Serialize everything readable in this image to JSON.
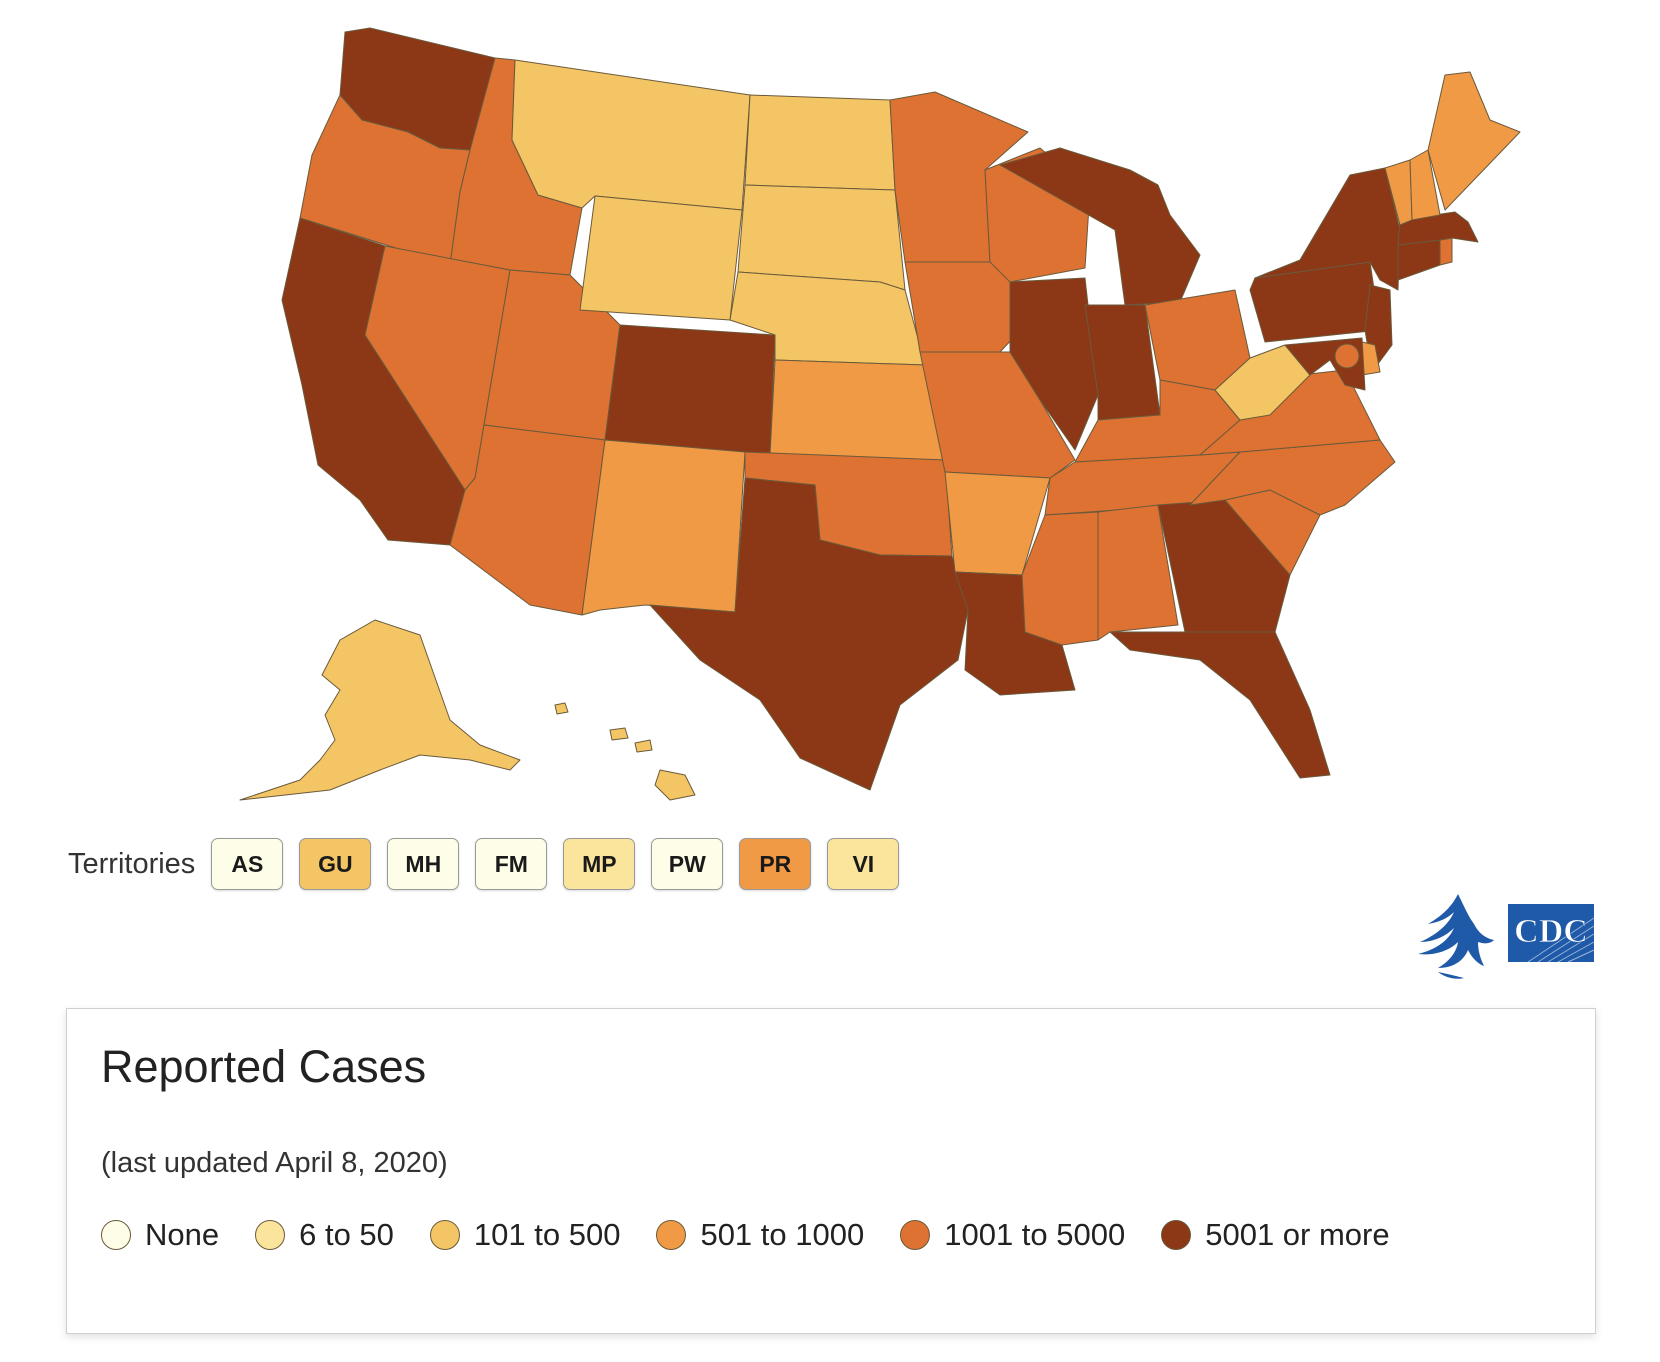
{
  "colors": {
    "none": "#fefde8",
    "c6_50": "#fbe49c",
    "c101_500": "#f4c564",
    "c501_1000": "#f09a45",
    "c1001_5000": "#dd7232",
    "c5001_plus": "#8c3716"
  },
  "states": {
    "WA": "c5001_plus",
    "OR": "c1001_5000",
    "CA": "c5001_plus",
    "ID": "c1001_5000",
    "NV": "c1001_5000",
    "UT": "c1001_5000",
    "AZ": "c1001_5000",
    "MT": "c101_500",
    "WY": "c101_500",
    "CO": "c5001_plus",
    "NM": "c501_1000",
    "ND": "c101_500",
    "SD": "c101_500",
    "NE": "c101_500",
    "KS": "c501_1000",
    "OK": "c1001_5000",
    "TX": "c5001_plus",
    "MN": "c1001_5000",
    "IA": "c1001_5000",
    "MO": "c1001_5000",
    "AR": "c501_1000",
    "LA": "c5001_plus",
    "WI": "c1001_5000",
    "IL": "c5001_plus",
    "MI": "c5001_plus",
    "IN": "c5001_plus",
    "OH": "c1001_5000",
    "KY": "c1001_5000",
    "TN": "c1001_5000",
    "MS": "c1001_5000",
    "AL": "c1001_5000",
    "GA": "c5001_plus",
    "FL": "c5001_plus",
    "SC": "c1001_5000",
    "NC": "c1001_5000",
    "VA": "c1001_5000",
    "WV": "c101_500",
    "PA": "c5001_plus",
    "NY": "c5001_plus",
    "NJ": "c5001_plus",
    "DE": "c501_1000",
    "MD": "c5001_plus",
    "DC": "c1001_5000",
    "CT": "c5001_plus",
    "RI": "c1001_5000",
    "MA": "c5001_plus",
    "VT": "c501_1000",
    "NH": "c501_1000",
    "ME": "c501_1000",
    "AK": "c101_500",
    "HI": "c101_500"
  },
  "territories": {
    "label": "Territories",
    "items": [
      {
        "code": "AS",
        "level": "none"
      },
      {
        "code": "GU",
        "level": "c101_500"
      },
      {
        "code": "MH",
        "level": "none"
      },
      {
        "code": "FM",
        "level": "none"
      },
      {
        "code": "MP",
        "level": "c6_50"
      },
      {
        "code": "PW",
        "level": "none"
      },
      {
        "code": "PR",
        "level": "c501_1000"
      },
      {
        "code": "VI",
        "level": "c6_50"
      }
    ]
  },
  "logos": [
    "hhs-eagle-logo",
    "cdc-logo"
  ],
  "legend": {
    "title": "Reported Cases",
    "updated": "(last updated April 8, 2020)",
    "items": [
      {
        "label": "None",
        "level": "none"
      },
      {
        "label": "6 to 50",
        "level": "c6_50"
      },
      {
        "label": "101 to 500",
        "level": "c101_500"
      },
      {
        "label": "501 to 1000",
        "level": "c501_1000"
      },
      {
        "label": "1001 to 5000",
        "level": "c1001_5000"
      },
      {
        "label": "5001 or more",
        "level": "c5001_plus"
      }
    ]
  }
}
